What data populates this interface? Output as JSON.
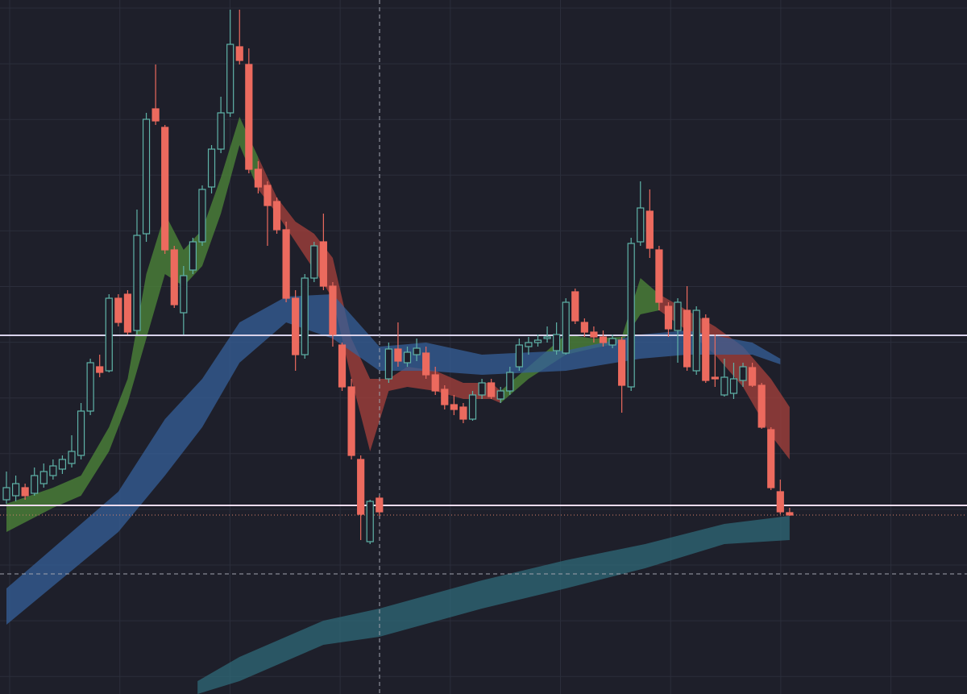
{
  "chart_data": {
    "type": "candlestick",
    "grid": true,
    "ylim": [
      0,
      861
    ],
    "up_color": "#5fb3a8",
    "down_color": "#ec6a5e",
    "ohlc": [
      [
        241,
        276,
        236,
        256
      ],
      [
        246,
        271,
        239,
        261
      ],
      [
        256,
        261,
        241,
        246
      ],
      [
        249,
        281,
        246,
        271
      ],
      [
        261,
        286,
        256,
        276
      ],
      [
        271,
        291,
        266,
        283
      ],
      [
        279,
        296,
        273,
        291
      ],
      [
        286,
        321,
        281,
        301
      ],
      [
        296,
        361,
        291,
        351
      ],
      [
        351,
        416,
        346,
        411
      ],
      [
        406,
        421,
        393,
        399
      ],
      [
        401,
        496,
        399,
        491
      ],
      [
        491,
        496,
        456,
        461
      ],
      [
        496,
        501,
        446,
        449
      ],
      [
        451,
        601,
        446,
        569
      ],
      [
        571,
        721,
        561,
        713
      ],
      [
        726,
        781,
        706,
        711
      ],
      [
        703,
        706,
        546,
        551
      ],
      [
        551,
        556,
        479,
        483
      ],
      [
        473,
        531,
        446,
        519
      ],
      [
        526,
        566,
        521,
        561
      ],
      [
        561,
        631,
        556,
        626
      ],
      [
        629,
        681,
        621,
        676
      ],
      [
        676,
        741,
        671,
        721
      ],
      [
        721,
        849,
        716,
        806
      ],
      [
        803,
        849,
        781,
        786
      ],
      [
        781,
        801,
        646,
        651
      ],
      [
        651,
        661,
        621,
        629
      ],
      [
        631,
        636,
        556,
        606
      ],
      [
        611,
        616,
        571,
        576
      ],
      [
        576,
        586,
        486,
        491
      ],
      [
        491,
        501,
        401,
        421
      ],
      [
        421,
        521,
        416,
        516
      ],
      [
        516,
        561,
        511,
        556
      ],
      [
        561,
        596,
        501,
        506
      ],
      [
        506,
        511,
        431,
        446
      ],
      [
        433,
        436,
        376,
        381
      ],
      [
        381,
        391,
        291,
        296
      ],
      [
        291,
        296,
        191,
        223
      ],
      [
        189,
        241,
        186,
        239
      ],
      [
        243,
        246,
        221,
        226
      ],
      [
        391,
        436,
        386,
        428
      ],
      [
        428,
        461,
        406,
        413
      ],
      [
        411,
        431,
        406,
        424
      ],
      [
        421,
        441,
        413,
        429
      ],
      [
        423,
        431,
        391,
        396
      ],
      [
        396,
        406,
        371,
        376
      ],
      [
        378,
        383,
        353,
        359
      ],
      [
        359,
        371,
        346,
        353
      ],
      [
        356,
        361,
        336,
        341
      ],
      [
        341,
        376,
        339,
        371
      ],
      [
        371,
        391,
        366,
        386
      ],
      [
        386,
        391,
        366,
        369
      ],
      [
        366,
        381,
        361,
        376
      ],
      [
        376,
        406,
        371,
        399
      ],
      [
        406,
        441,
        401,
        433
      ],
      [
        431,
        443,
        421,
        436
      ],
      [
        436,
        446,
        431,
        439
      ],
      [
        441,
        456,
        436,
        443
      ],
      [
        426,
        461,
        421,
        446
      ],
      [
        423,
        491,
        421,
        486
      ],
      [
        499,
        503,
        459,
        463
      ],
      [
        461,
        466,
        443,
        449
      ],
      [
        449,
        456,
        436,
        443
      ],
      [
        443,
        451,
        431,
        436
      ],
      [
        433,
        446,
        429,
        441
      ],
      [
        439,
        443,
        349,
        383
      ],
      [
        381,
        566,
        376,
        559
      ],
      [
        561,
        636,
        556,
        603
      ],
      [
        599,
        626,
        541,
        553
      ],
      [
        551,
        556,
        476,
        486
      ],
      [
        481,
        486,
        443,
        453
      ],
      [
        451,
        491,
        411,
        486
      ],
      [
        476,
        506,
        401,
        406
      ],
      [
        401,
        481,
        396,
        476
      ],
      [
        466,
        471,
        386,
        389
      ],
      [
        393,
        446,
        381,
        391
      ],
      [
        371,
        416,
        369,
        393
      ],
      [
        373,
        411,
        366,
        391
      ],
      [
        389,
        411,
        381,
        406
      ],
      [
        405,
        411,
        381,
        383
      ],
      [
        383,
        386,
        329,
        331
      ],
      [
        328,
        331,
        253,
        256
      ],
      [
        251,
        266,
        223,
        226
      ],
      [
        225,
        231,
        221,
        222
      ]
    ],
    "bands": [
      {
        "color": "#4f8a3a",
        "x": [
          0,
          5,
          8,
          11,
          13,
          15,
          17,
          19,
          21,
          23,
          25,
          27
        ],
        "upper": [
          236,
          256,
          271,
          331,
          391,
          521,
          596,
          551,
          576,
          641,
          716,
          666
        ],
        "lower": [
          201,
          231,
          246,
          301,
          361,
          441,
          521,
          506,
          531,
          596,
          681,
          626
        ]
      },
      {
        "color": "#a8423c",
        "x": [
          27,
          29,
          31,
          33,
          35,
          37,
          39,
          41,
          43,
          46,
          49,
          52,
          53
        ],
        "upper": [
          666,
          616,
          586,
          571,
          541,
          441,
          391,
          391,
          406,
          401,
          386,
          386,
          376
        ],
        "lower": [
          626,
          596,
          561,
          526,
          491,
          391,
          301,
          376,
          381,
          376,
          366,
          366,
          361
        ]
      },
      {
        "color": "#4f8a3a",
        "x": [
          53,
          56,
          60,
          63,
          66,
          68,
          70
        ],
        "upper": [
          376,
          406,
          446,
          441,
          443,
          516,
          496
        ],
        "lower": [
          361,
          391,
          421,
          429,
          436,
          471,
          476
        ]
      },
      {
        "color": "#a8423c",
        "x": [
          70,
          73,
          76,
          79,
          82,
          84
        ],
        "upper": [
          496,
          476,
          456,
          431,
          391,
          356
        ],
        "lower": [
          476,
          451,
          421,
          381,
          321,
          291
        ]
      },
      {
        "color": "#35609a",
        "x": [
          0,
          12,
          17,
          21,
          25,
          30,
          35,
          40,
          45,
          51,
          60,
          68,
          73,
          80,
          83
        ],
        "upper": [
          131,
          251,
          341,
          391,
          461,
          493,
          496,
          431,
          436,
          421,
          426,
          446,
          451,
          436,
          416
        ],
        "lower": [
          86,
          201,
          271,
          331,
          411,
          461,
          441,
          401,
          401,
          396,
          401,
          416,
          421,
          421,
          409
        ]
      },
      {
        "color": "#2f6a78",
        "x": [
          20.5,
          25,
          34,
          40,
          51,
          60,
          68.5,
          77,
          84
        ],
        "upper": [
          16,
          46,
          91,
          106,
          141,
          166,
          186,
          211,
          221
        ],
        "lower": [
          0,
          16,
          61,
          71,
          106,
          131,
          156,
          186,
          191
        ]
      }
    ],
    "levels": [
      {
        "value": 445,
        "color": "#d8d2ea",
        "style": "solid"
      },
      {
        "value": 234,
        "color": "#eddcef",
        "style": "solid"
      },
      {
        "value": 222,
        "color": "#d9826a",
        "style": "dotted"
      }
    ]
  }
}
